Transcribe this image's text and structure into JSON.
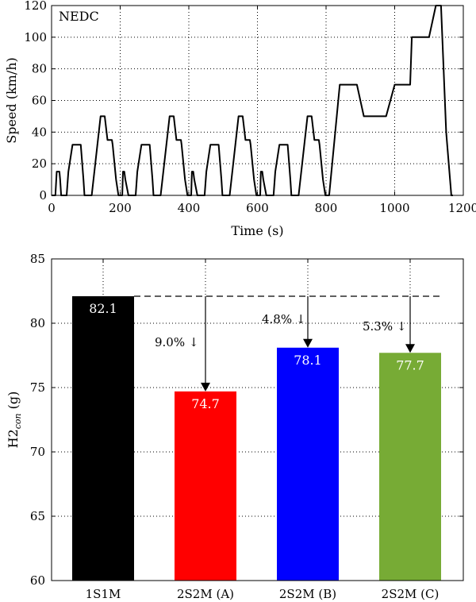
{
  "chart_data": [
    {
      "type": "line",
      "title": "",
      "annotation": "NEDC",
      "xlabel": "Time (s)",
      "ylabel": "Speed (km/h)",
      "xlim": [
        0,
        1200
      ],
      "ylim": [
        0,
        120
      ],
      "xticks": [
        0,
        200,
        400,
        600,
        800,
        1000,
        1200
      ],
      "yticks": [
        0,
        20,
        40,
        60,
        80,
        100,
        120
      ],
      "grid": "dotted",
      "series": [
        {
          "color": "#000000",
          "x": [
            0,
            11,
            15,
            23,
            25,
            28,
            44,
            49,
            61,
            85,
            93,
            96,
            117,
            143,
            155,
            163,
            176,
            178,
            188,
            195,
            201,
            206,
            208,
            212,
            215,
            224,
            226,
            229,
            245,
            250,
            262,
            286,
            294,
            297,
            318,
            344,
            356,
            364,
            377,
            379,
            389,
            396,
            402,
            407,
            409,
            413,
            416,
            425,
            427,
            430,
            446,
            451,
            463,
            487,
            495,
            498,
            519,
            545,
            557,
            565,
            578,
            580,
            590,
            597,
            603,
            608,
            610,
            614,
            617,
            626,
            628,
            631,
            647,
            652,
            664,
            688,
            696,
            699,
            720,
            746,
            758,
            766,
            779,
            781,
            791,
            798,
            804,
            809,
            840,
            890,
            910,
            975,
            1000,
            1045,
            1050,
            1100,
            1120,
            1135,
            1150,
            1165,
            1170
          ],
          "y": [
            0,
            0,
            15,
            15,
            10,
            0,
            0,
            15,
            32,
            32,
            10,
            0,
            0,
            50,
            50,
            35,
            35,
            32,
            10,
            0,
            0,
            0,
            15,
            15,
            10,
            0,
            0,
            0,
            0,
            15,
            32,
            32,
            10,
            0,
            0,
            50,
            50,
            35,
            35,
            32,
            10,
            0,
            0,
            0,
            15,
            15,
            10,
            0,
            0,
            0,
            0,
            15,
            32,
            32,
            10,
            0,
            0,
            50,
            50,
            35,
            35,
            32,
            10,
            0,
            0,
            0,
            15,
            15,
            10,
            0,
            0,
            0,
            0,
            15,
            32,
            32,
            10,
            0,
            0,
            50,
            50,
            35,
            35,
            32,
            10,
            0,
            0,
            0,
            70,
            70,
            50,
            50,
            70,
            70,
            100,
            100,
            120,
            120,
            40,
            0,
            0
          ]
        }
      ]
    },
    {
      "type": "bar",
      "title": "",
      "xlabel": "",
      "ylabel": "H2",
      "ylabel_sub": "con",
      "ylabel_unit": " (g)",
      "ylim": [
        60,
        85
      ],
      "yticks": [
        60,
        65,
        70,
        75,
        80,
        85
      ],
      "grid": "dotted",
      "categories": [
        "1S1M",
        "2S2M (A)",
        "2S2M (B)",
        "2S2M (C)"
      ],
      "values": [
        82.1,
        74.7,
        78.1,
        77.7
      ],
      "value_labels": [
        "82.1",
        "74.7",
        "78.1",
        "77.7"
      ],
      "colors": [
        "#000000",
        "#ff0000",
        "#0000ff",
        "#77ab35"
      ],
      "reference_line": 82.1,
      "reductions": [
        "",
        "9.0% ↓",
        "4.8% ↓",
        "5.3% ↓"
      ]
    }
  ]
}
